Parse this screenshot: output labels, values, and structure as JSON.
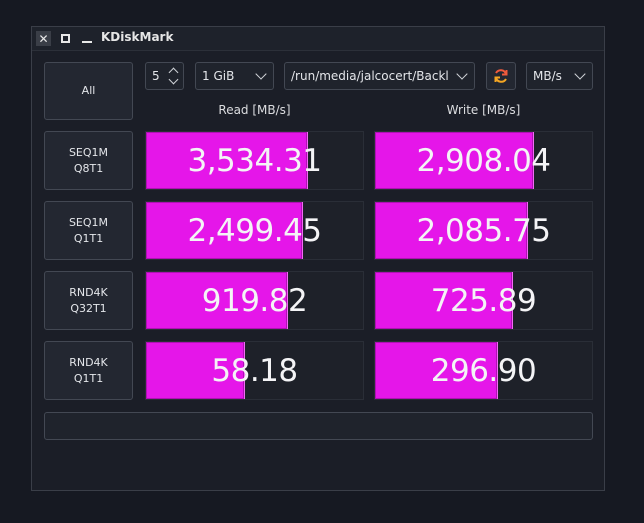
{
  "window": {
    "title": "KDiskMark"
  },
  "controls": {
    "all_button": "All",
    "count": "5",
    "size": "1 GiB",
    "path": "/run/media/jalcocert/Backl",
    "unit": "MB/s"
  },
  "columns": {
    "read": "Read [MB/s]",
    "write": "Write [MB/s]"
  },
  "tests": [
    {
      "label": "SEQ1M\nQ8T1",
      "read": "3,534.31",
      "write": "2,908.04",
      "read_fill": 0.74,
      "write_fill": 0.73
    },
    {
      "label": "SEQ1M\nQ1T1",
      "read": "2,499.45",
      "write": "2,085.75",
      "read_fill": 0.72,
      "write_fill": 0.7
    },
    {
      "label": "RND4K\nQ32T1",
      "read": "919.82",
      "write": "725.89",
      "read_fill": 0.65,
      "write_fill": 0.63
    },
    {
      "label": "RND4K\nQ1T1",
      "read": "58.18",
      "write": "296.90",
      "read_fill": 0.45,
      "write_fill": 0.56
    }
  ],
  "colors": {
    "bar": "#e516e9",
    "background": "#1b1e27"
  },
  "icons": {
    "close": "close-icon",
    "maximize": "maximize-icon",
    "minimize": "minimize-icon",
    "refresh": "refresh-icon"
  }
}
